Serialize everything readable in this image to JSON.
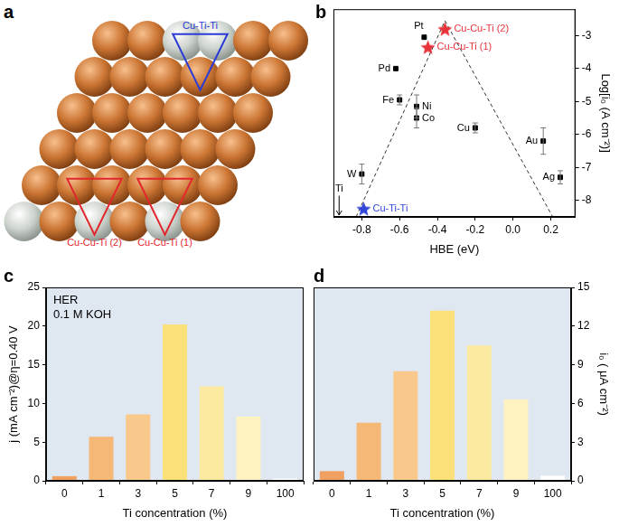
{
  "diagram": {
    "title": "a",
    "sites": [
      {
        "label": "Cu-Ti-Ti",
        "color": "#2b3bd6"
      },
      {
        "label": "Cu-Cu-Ti (2)",
        "color": "#e3262e"
      },
      {
        "label": "Cu-Cu-Ti (1)",
        "color": "#e3262e"
      }
    ]
  },
  "chart_data": [
    {
      "title": "b",
      "type": "scatter",
      "x_label": "HBE (eV)",
      "y_label": "Log[i₀ (A cm⁻²)]",
      "xlim": [
        -0.95,
        0.33
      ],
      "xticks": [
        -0.8,
        -0.6,
        -0.4,
        -0.2,
        {
          "value": 0,
          "label": "0.0"
        },
        0.2
      ],
      "ylim": [
        -8.5,
        -2.2
      ],
      "yticks": [
        -8,
        -7,
        -6,
        -5,
        -4,
        -3
      ],
      "grid": false,
      "series": [
        {
          "type": "line",
          "line_style": "dashed",
          "color": "#333333",
          "x": [
            -0.83,
            -0.36,
            0.21
          ],
          "y": [
            -8.5,
            -2.55,
            -8.5
          ]
        },
        {
          "type": "scatter",
          "marker": "square",
          "color": "#000000",
          "labels": [
            "W",
            "Pd",
            "Fe",
            "Ni",
            "Co",
            "Pt",
            "Cu",
            "Au",
            "Ag"
          ],
          "x": [
            -0.8,
            -0.62,
            -0.6,
            -0.51,
            -0.51,
            -0.47,
            -0.2,
            0.16,
            0.25
          ],
          "y": [
            -7.2,
            -4.0,
            -4.95,
            -5.15,
            -5.5,
            -3.05,
            -5.8,
            -6.2,
            -7.3
          ],
          "errors": [
            0.3,
            0,
            0.15,
            0.35,
            0.3,
            0,
            0.15,
            0.4,
            0.2
          ]
        },
        {
          "type": "scatter",
          "marker": "star",
          "color": "#e8323a",
          "labels": [
            "Cu-Cu-Ti (2)",
            "Cu-Cu-Ti (1)"
          ],
          "x": [
            -0.36,
            -0.45
          ],
          "y": [
            -2.8,
            -3.35
          ]
        },
        {
          "type": "scatter",
          "marker": "star",
          "color": "#3146d8",
          "labels": [
            "Cu-Ti-Ti"
          ],
          "x": [
            -0.79
          ],
          "y": [
            -8.25
          ]
        }
      ],
      "annotations": [
        {
          "text": "Ti",
          "x": -0.92,
          "y": -7.8
        }
      ]
    },
    {
      "title": "c",
      "type": "bar",
      "x_label": "Ti concentration (%)",
      "y_label": "j (mA cm⁻²)@η=0.40 V",
      "categories": [
        "0",
        "1",
        "3",
        "5",
        "7",
        "9",
        "100"
      ],
      "values": [
        0.6,
        5.7,
        8.6,
        20.2,
        12.2,
        8.3,
        0.3
      ],
      "colors": [
        "#f0a060",
        "#f5b877",
        "#f8c98a",
        "#fbe07a",
        "#fbe9a0",
        "#fdf2c0",
        "#ffffff"
      ],
      "ylim": [
        0,
        25
      ],
      "yticks": [
        0,
        5,
        10,
        15,
        20,
        25
      ],
      "grid": false,
      "annotations": [
        "HER",
        "0.1 M KOH"
      ]
    },
    {
      "title": "d",
      "type": "bar",
      "x_label": "Ti concentration (%)",
      "y_label": "i₀ ( μA cm⁻²)",
      "categories": [
        "0",
        "1",
        "3",
        "5",
        "7",
        "9",
        "100"
      ],
      "values": [
        0.75,
        4.5,
        8.5,
        13.2,
        10.5,
        6.3,
        0.4
      ],
      "colors": [
        "#f0a060",
        "#f5b877",
        "#f8c98a",
        "#fbe07a",
        "#fbe9a0",
        "#fdf2c0",
        "#ffffff"
      ],
      "ylim": [
        0,
        15
      ],
      "yticks": [
        0,
        3,
        6,
        9,
        12,
        15
      ],
      "grid": false
    }
  ]
}
